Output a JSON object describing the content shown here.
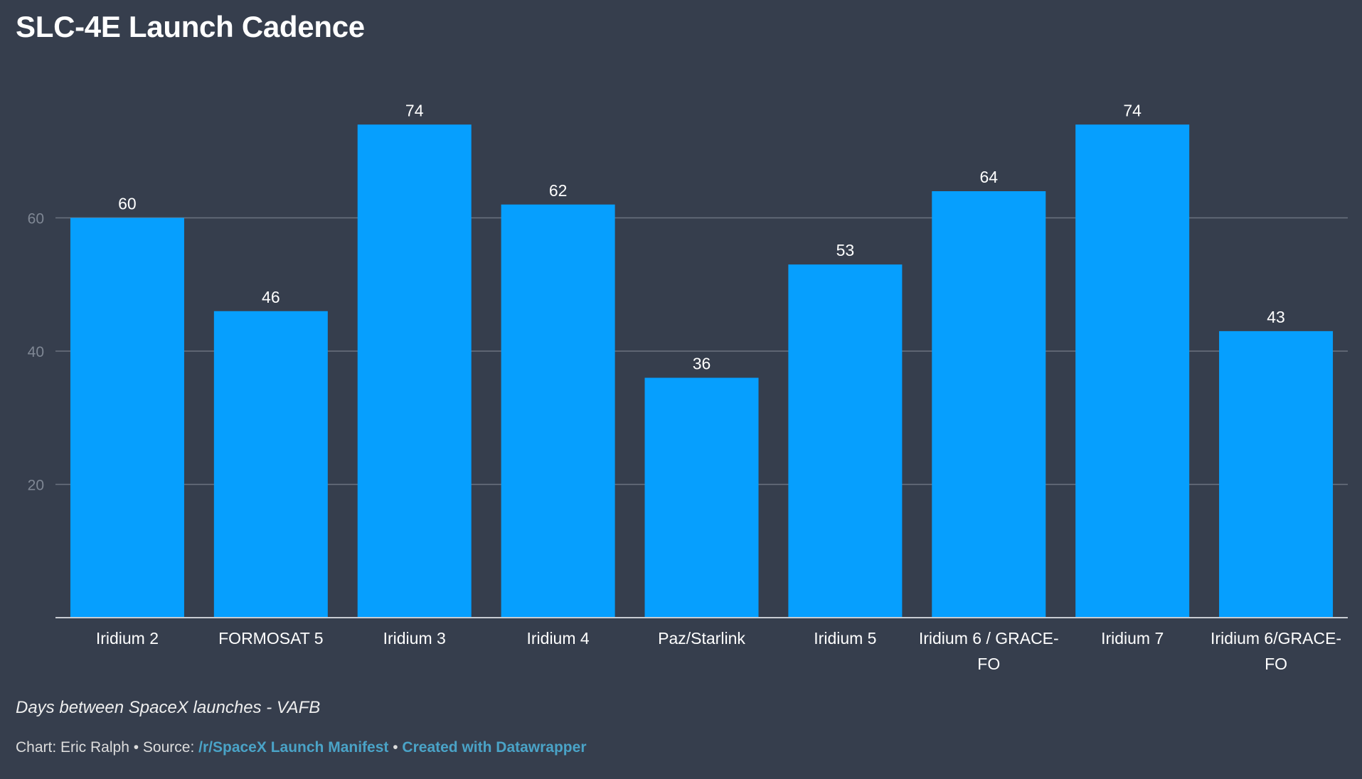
{
  "title": "SLC-4E Launch Cadence",
  "description": "Days between SpaceX launches - VAFB",
  "footer": {
    "chart_prefix": "Chart: Eric Ralph",
    "separator": " • ",
    "source_prefix": "Source: ",
    "source_link": "/r/SpaceX Launch Manifest",
    "created_with": "Created with Datawrapper"
  },
  "colors": {
    "background": "#363e4d",
    "bar": "#069ffe",
    "gridline": "#6b7280",
    "link": "#4aa3c7"
  },
  "chart_data": {
    "type": "bar",
    "title": "SLC-4E Launch Cadence",
    "xlabel": "",
    "ylabel": "",
    "categories": [
      "Iridium 2",
      "FORMOSAT 5",
      "Iridium 3",
      "Iridium 4",
      "Paz/Starlink",
      "Iridium 5",
      "Iridium 6 / GRACE-FO",
      "Iridium 7",
      "Iridium 6/GRACE-FO"
    ],
    "category_lines": [
      [
        "Iridium 2"
      ],
      [
        "FORMOSAT 5"
      ],
      [
        "Iridium 3"
      ],
      [
        "Iridium 4"
      ],
      [
        "Paz/Starlink"
      ],
      [
        "Iridium 5"
      ],
      [
        "Iridium 6 / GRACE-",
        "FO"
      ],
      [
        "Iridium 7"
      ],
      [
        "Iridium 6/GRACE-",
        "FO"
      ]
    ],
    "values": [
      60,
      46,
      74,
      62,
      36,
      53,
      64,
      74,
      43
    ],
    "ylim": [
      0,
      80
    ],
    "yticks": [
      20,
      40,
      60
    ],
    "grid": true,
    "data_labels": true
  }
}
